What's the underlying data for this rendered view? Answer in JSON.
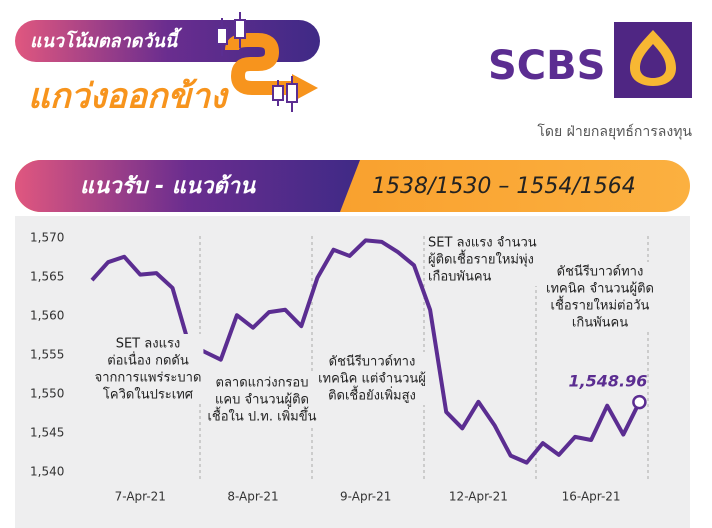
{
  "header": {
    "tag": "แนวโน้มตลาดวันนี้",
    "headline": "แกว่งออกข้าง",
    "brand": "SCBS",
    "byline": "โดย ฝ่ายกลยุทธ์การลงทุน"
  },
  "banner": {
    "label": "แนวรับ - แนวต้าน",
    "levels": "1538/1530 – 1554/1564"
  },
  "chart_data": {
    "type": "line",
    "categories": [
      null,
      null,
      null,
      "7-Apr-21",
      null,
      null,
      null,
      null,
      null,
      null,
      "8-Apr-21",
      null,
      null,
      null,
      null,
      null,
      null,
      "9-Apr-21",
      null,
      null,
      null,
      null,
      null,
      null,
      "12-Apr-21",
      null,
      null,
      null,
      null,
      null,
      null,
      "16-Apr-21",
      null,
      null,
      null
    ],
    "series": [
      {
        "name": "SET",
        "color": "#5b2d91",
        "values": [
          1564.6,
          1566.9,
          1567.6,
          1565.3,
          1565.5,
          1563.6,
          1556.5,
          1555.4,
          1554.4,
          1560.1,
          1558.5,
          1560.5,
          1560.8,
          1558.7,
          1564.9,
          1568.5,
          1567.7,
          1569.7,
          1569.5,
          1568.2,
          1566.5,
          1560.8,
          1547.7,
          1545.6,
          1549.0,
          1546.0,
          1542.1,
          1541.2,
          1543.7,
          1542.2,
          1544.5,
          1544.1,
          1548.5,
          1544.8,
          1548.96
        ],
        "value_labels": [
          null,
          null,
          null,
          null,
          null,
          null,
          null,
          null,
          null,
          null,
          null,
          null,
          null,
          null,
          null,
          null,
          null,
          null,
          null,
          null,
          null,
          null,
          null,
          null,
          null,
          null,
          null,
          null,
          null,
          null,
          null,
          null,
          null,
          null,
          "1,548.96"
        ]
      }
    ],
    "ylim": [
      1538,
      1572
    ],
    "yticks": [
      {
        "value": 1540,
        "label": "1,540"
      },
      {
        "value": 1545,
        "label": "1,545"
      },
      {
        "value": 1550,
        "label": "1,550"
      },
      {
        "value": 1555,
        "label": "1,555"
      },
      {
        "value": 1560,
        "label": "1,560"
      },
      {
        "value": 1565,
        "label": "1,565"
      },
      {
        "value": 1570,
        "label": "1,570"
      }
    ],
    "annotations": [
      {
        "lines": [
          "SET ลงแรง",
          "ต่อเนื่อง กดดัน",
          "จากการแพร่ระบาด",
          "โควิดในประเทศ"
        ]
      },
      {
        "lines": [
          "ตลาดแกว่งกรอบ",
          "แคบ จำนวนผู้ติด",
          "เชื้อใน ป.ท. เพิ่มขึ้น"
        ]
      },
      {
        "lines": [
          "ดัชนีรีบาวด์ทาง",
          "เทคนิค แต่จำนวนผู้",
          "ติดเชื้อยังเพิ่มสูง"
        ]
      },
      {
        "lines": [
          "SET ลงแรง จำนวน",
          "ผู้ติดเชื้อรายใหม่พุ่ง",
          "เกือบพันคน"
        ]
      },
      {
        "lines": [
          "ดัชนีรีบาวด์ทาง",
          "เทคนิค จำนวนผู้ติด",
          "เชื้อรายใหม่ต่อวัน",
          "เกินพันคน"
        ]
      }
    ]
  }
}
